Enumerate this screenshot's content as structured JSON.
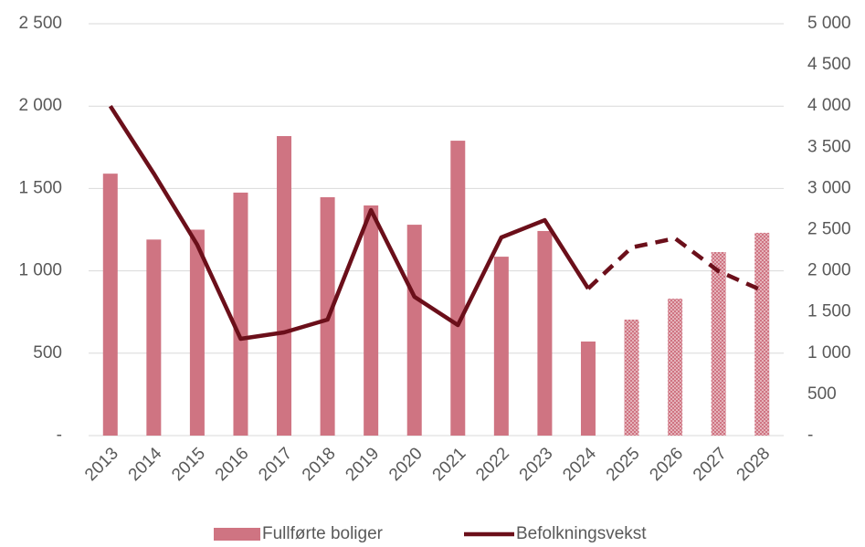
{
  "chart_data": {
    "type": "bar_line",
    "categories": [
      "2013",
      "2014",
      "2015",
      "2016",
      "2017",
      "2018",
      "2019",
      "2020",
      "2021",
      "2022",
      "2023",
      "2024",
      "2025",
      "2026",
      "2027",
      "2028"
    ],
    "series": [
      {
        "name": "Fullførte boliger",
        "type": "bar",
        "color": "#cf7482",
        "projected_from": "2025",
        "values": [
          1590,
          1190,
          1250,
          1475,
          1818,
          1447,
          1397,
          1280,
          1790,
          1086,
          1242,
          571,
          704,
          831,
          1114,
          1231
        ]
      },
      {
        "name": "Befolkningsvekst",
        "type": "line",
        "axis": "y2",
        "color": "#6b0f1a",
        "projected_from": "2024",
        "values": [
          4000,
          3182,
          2317,
          1175,
          1253,
          1408,
          2738,
          1685,
          1341,
          2406,
          2616,
          1785,
          2284,
          2395,
          1996,
          1763
        ]
      }
    ],
    "ylim": [
      0,
      2500
    ],
    "yticks": [
      {
        "value": 0,
        "label": "-"
      },
      500,
      {
        "value": 1000,
        "label": "1 000"
      },
      {
        "value": 1500,
        "label": "1 500"
      },
      {
        "value": 2000,
        "label": "2 000"
      },
      {
        "value": 2500,
        "label": "2 500"
      }
    ],
    "y2lim": [
      0,
      5000
    ],
    "y2ticks": [
      {
        "value": 0,
        "label": "-"
      },
      500,
      {
        "value": 1000,
        "label": "1 000"
      },
      {
        "value": 1500,
        "label": "1 500"
      },
      {
        "value": 2000,
        "label": "2 000"
      },
      {
        "value": 2500,
        "label": "2 500"
      },
      {
        "value": 3000,
        "label": "3 000"
      },
      {
        "value": 3500,
        "label": "3 500"
      },
      {
        "value": 4000,
        "label": "4 000"
      },
      {
        "value": 4500,
        "label": "4 500"
      },
      {
        "value": 5000,
        "label": "5 000"
      }
    ],
    "grid": true,
    "legend": "bottom"
  }
}
